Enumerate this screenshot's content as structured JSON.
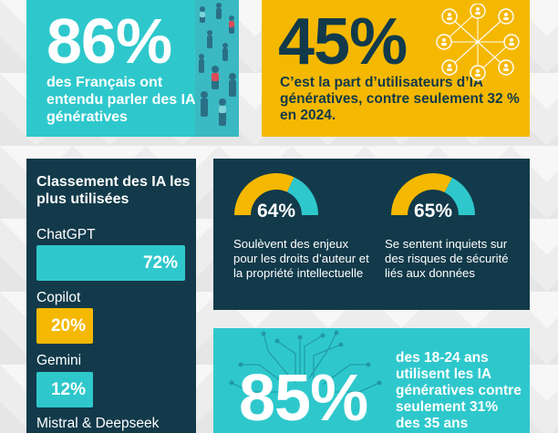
{
  "stat_heard": {
    "value": "86%",
    "text": "des Français ont entendu parler des IA génératives",
    "color": "#2ec8cc"
  },
  "stat_users": {
    "value": "45%",
    "text": "C’est la part d’utilisateurs d’IA génératives, contre seulement 32 % en 2024.",
    "color": "#f5b800"
  },
  "ranking": {
    "title": "Classement des IA les plus utilisées",
    "items": [
      {
        "name": "ChatGPT",
        "percent_label": "72%",
        "value": 72,
        "color": "#2ec8cc"
      },
      {
        "name": "Copilot",
        "percent_label": "20%",
        "value": 20,
        "color": "#f5b800"
      },
      {
        "name": "Gemini",
        "percent_label": "12%",
        "value": 12,
        "color": "#2ec8cc"
      },
      {
        "name": "Mistral & Deepseek",
        "percent_label": "",
        "value": null,
        "color": "#2ec8cc"
      }
    ]
  },
  "gauges": [
    {
      "percent_label": "64%",
      "value": 64,
      "text": "Soulèvent des enjeux pour les droits d’auteur et la propriété intellectuelle"
    },
    {
      "percent_label": "65%",
      "value": 65,
      "text": "Se sentent inquiets sur des risques de sécurité liés aux données"
    }
  ],
  "stat_young": {
    "value": "85%",
    "text": "des 18-24 ans utilisent les IA génératives contre seulement 31% des 35 ans"
  },
  "colors": {
    "navy": "#123a4a",
    "teal": "#2ec8cc",
    "yellow": "#f5b800"
  },
  "icons": [
    "crowd-photo",
    "network-people-icon",
    "circuit-icon"
  ]
}
